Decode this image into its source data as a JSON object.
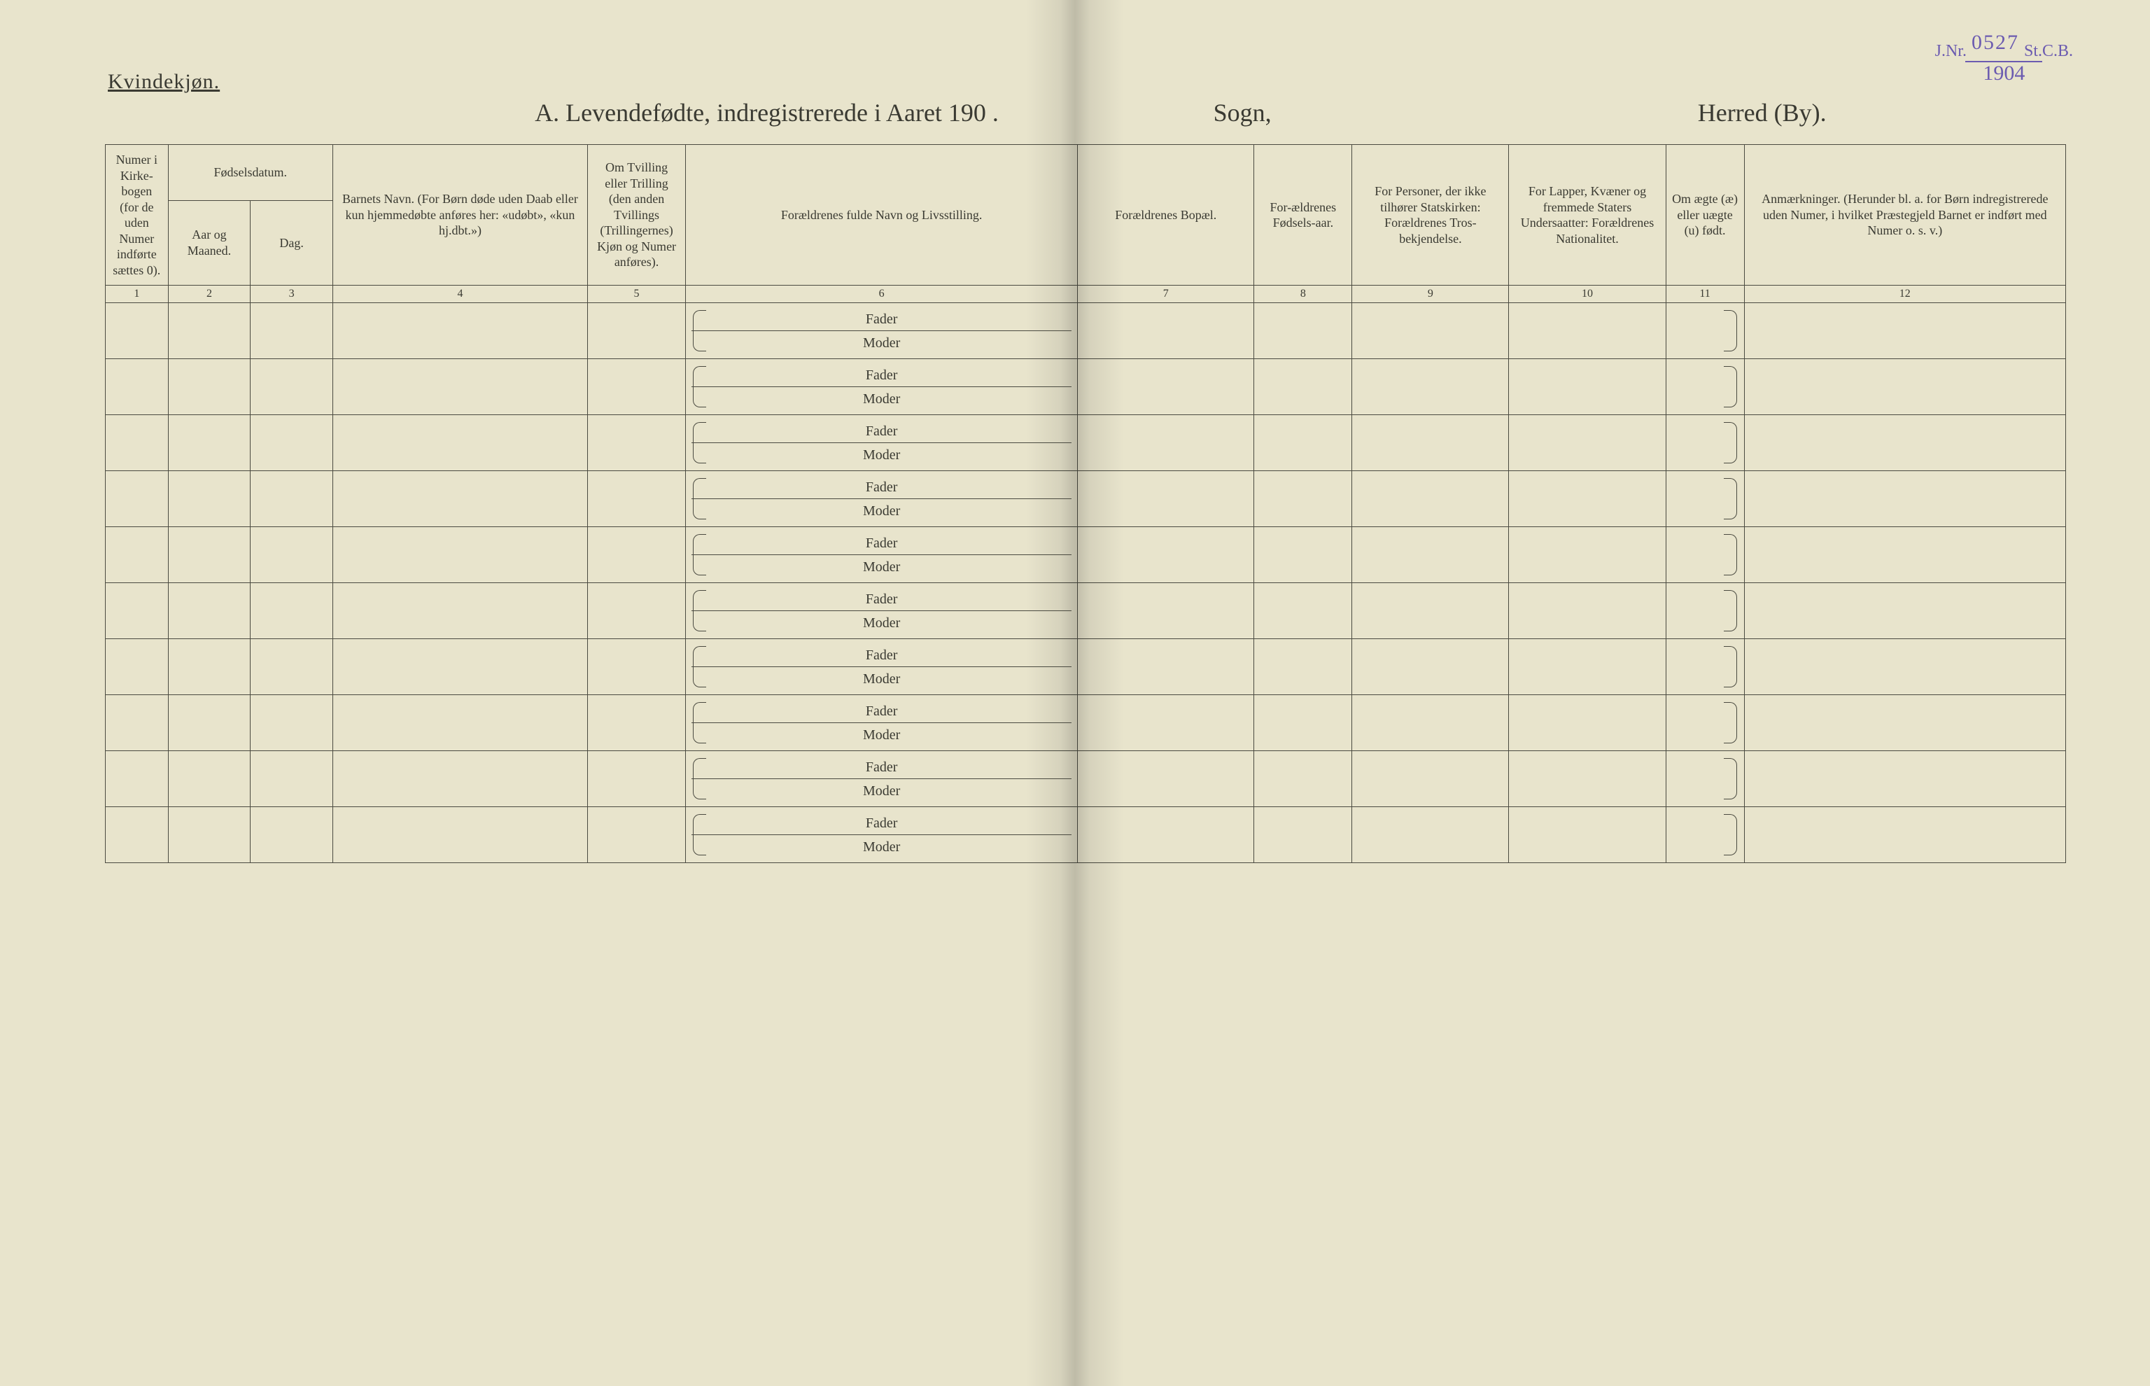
{
  "stamp": {
    "jnr": "J.Nr.",
    "number": "0527",
    "stcb": "St.C.B.",
    "year": "1904"
  },
  "header": {
    "gender": "Kvindekjøn.",
    "title": "A.  Levendefødte, indregistrerede i Aaret 190  .",
    "sogn": "Sogn,",
    "herred": "Herred (By)."
  },
  "columns": {
    "c1": "Numer i Kirke-bogen (for de uden Numer indførte sættes 0).",
    "fods_group": "Fødselsdatum.",
    "c2": "Aar og Maaned.",
    "c3": "Dag.",
    "c4": "Barnets Navn.\n(For Børn døde uden Daab eller kun hjemmedøbte anføres her: «udøbt», «kun hj.dbt.»)",
    "c5": "Om Tvilling eller Trilling (den anden Tvillings (Trillingernes) Kjøn og Numer anføres).",
    "c6": "Forældrenes fulde Navn og Livsstilling.",
    "c7": "Forældrenes Bopæl.",
    "c8": "For-ældrenes Fødsels-aar.",
    "c9": "For Personer, der ikke tilhører Statskirken: Forældrenes Tros-bekjendelse.",
    "c10": "For Lapper, Kvæner og fremmede Staters Undersaatter: Forældrenes Nationalitet.",
    "c11": "Om ægte (æ) eller uægte (u) født.",
    "c12": "Anmærkninger.\n(Herunder bl. a. for Børn indregistrerede uden Numer, i hvilket Præstegjeld Barnet er indført med Numer o. s. v.)"
  },
  "colnums": [
    "1",
    "2",
    "3",
    "4",
    "5",
    "6",
    "7",
    "8",
    "9",
    "10",
    "11",
    "12"
  ],
  "row_labels": {
    "fader": "Fader",
    "moder": "Moder"
  },
  "blank_rows": 10,
  "style": {
    "paper_color": "#e8e4cc",
    "ink_color": "#3a3a32",
    "rule_color": "#4a4a40",
    "stamp_color": "#6b5bb0",
    "title_fontsize_pt": 27,
    "header_fontsize_pt": 13,
    "body_fontsize_pt": 15,
    "font_family": "Times New Roman"
  }
}
